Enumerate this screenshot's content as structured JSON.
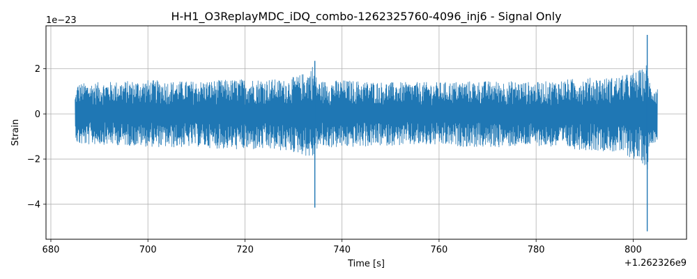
{
  "chart_data": {
    "type": "line",
    "title": "H-H1_O3ReplayMDC_iDQ_combo-1262325760-4096_inj6 - Signal Only",
    "xlabel": "Time [s]",
    "ylabel": "Strain",
    "x_offset_label": "+1.262326e9",
    "y_scale_label": "1e−23",
    "xlim": [
      679.0,
      811.0
    ],
    "ylim": [
      -5.55,
      3.9
    ],
    "x_ticks": [
      680,
      700,
      720,
      740,
      760,
      780,
      800
    ],
    "x_tick_labels": [
      "680",
      "700",
      "720",
      "740",
      "760",
      "780",
      "800"
    ],
    "y_ticks": [
      -4,
      -2,
      0,
      2
    ],
    "y_tick_labels": [
      "−4",
      "−2",
      "0",
      "2"
    ],
    "grid": true,
    "series_color": "#1f77b4",
    "x_range": [
      685.0,
      805.0
    ],
    "envelope": [
      {
        "x": 685.0,
        "upper": 0.8,
        "lower": -0.9
      },
      {
        "x": 685.5,
        "upper": 1.35,
        "lower": -1.4
      },
      {
        "x": 690,
        "upper": 1.4,
        "lower": -1.35
      },
      {
        "x": 695,
        "upper": 1.45,
        "lower": -1.4
      },
      {
        "x": 700,
        "upper": 1.5,
        "lower": -1.45
      },
      {
        "x": 705,
        "upper": 1.45,
        "lower": -1.5
      },
      {
        "x": 710,
        "upper": 1.45,
        "lower": -1.45
      },
      {
        "x": 715,
        "upper": 1.5,
        "lower": -1.55
      },
      {
        "x": 720,
        "upper": 1.55,
        "lower": -1.6
      },
      {
        "x": 725,
        "upper": 1.55,
        "lower": -1.6
      },
      {
        "x": 728,
        "upper": 1.5,
        "lower": -1.65
      },
      {
        "x": 731,
        "upper": 1.7,
        "lower": -1.75
      },
      {
        "x": 733,
        "upper": 1.9,
        "lower": -1.9
      },
      {
        "x": 734.0,
        "upper": 2.2,
        "lower": -2.0
      },
      {
        "x": 735,
        "upper": 1.45,
        "lower": -1.5
      },
      {
        "x": 740,
        "upper": 1.5,
        "lower": -1.5
      },
      {
        "x": 745,
        "upper": 1.45,
        "lower": -1.45
      },
      {
        "x": 750,
        "upper": 1.4,
        "lower": -1.4
      },
      {
        "x": 755,
        "upper": 1.4,
        "lower": -1.4
      },
      {
        "x": 760,
        "upper": 1.4,
        "lower": -1.4
      },
      {
        "x": 765,
        "upper": 1.45,
        "lower": -1.45
      },
      {
        "x": 770,
        "upper": 1.45,
        "lower": -1.5
      },
      {
        "x": 775,
        "upper": 1.45,
        "lower": -1.45
      },
      {
        "x": 780,
        "upper": 1.4,
        "lower": -1.4
      },
      {
        "x": 785,
        "upper": 1.5,
        "lower": -1.5
      },
      {
        "x": 790,
        "upper": 1.6,
        "lower": -1.6
      },
      {
        "x": 795,
        "upper": 1.6,
        "lower": -1.65
      },
      {
        "x": 798,
        "upper": 1.7,
        "lower": -1.8
      },
      {
        "x": 800,
        "upper": 1.85,
        "lower": -2.0
      },
      {
        "x": 802,
        "upper": 2.0,
        "lower": -2.2
      },
      {
        "x": 803,
        "upper": 2.3,
        "lower": -2.5
      },
      {
        "x": 803.5,
        "upper": 1.3,
        "lower": -1.35
      },
      {
        "x": 805.0,
        "upper": 1.2,
        "lower": -1.2
      }
    ],
    "spikes": [
      {
        "x": 734.4,
        "min": -4.15,
        "max": 2.35
      },
      {
        "x": 802.9,
        "min": -5.2,
        "max": 3.5
      }
    ]
  }
}
